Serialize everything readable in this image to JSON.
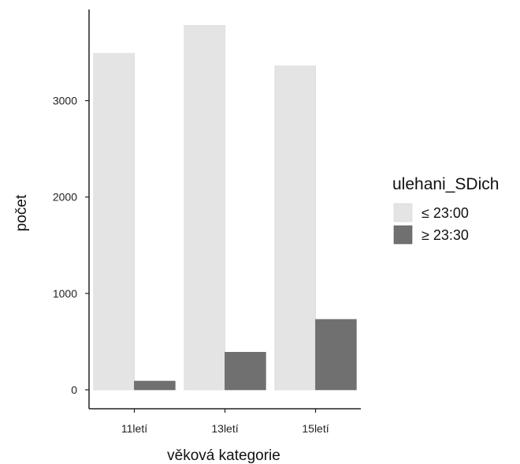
{
  "chart_data": {
    "type": "bar",
    "categories": [
      "11letí",
      "13letí",
      "15letí"
    ],
    "series": [
      {
        "name": "≤ 23:00",
        "values": [
          3490,
          3780,
          3360
        ],
        "color": "#e4e4e4"
      },
      {
        "name": "≥ 23:30",
        "values": [
          90,
          390,
          730
        ],
        "color": "#707070"
      }
    ],
    "xlabel": "věková kategorie",
    "ylabel": "počet",
    "ylim": [
      0,
      3900
    ],
    "yticks": [
      0,
      1000,
      2000,
      3000
    ],
    "grid": false,
    "legend": {
      "title": "ulehani_SDich",
      "placement": "right"
    }
  }
}
